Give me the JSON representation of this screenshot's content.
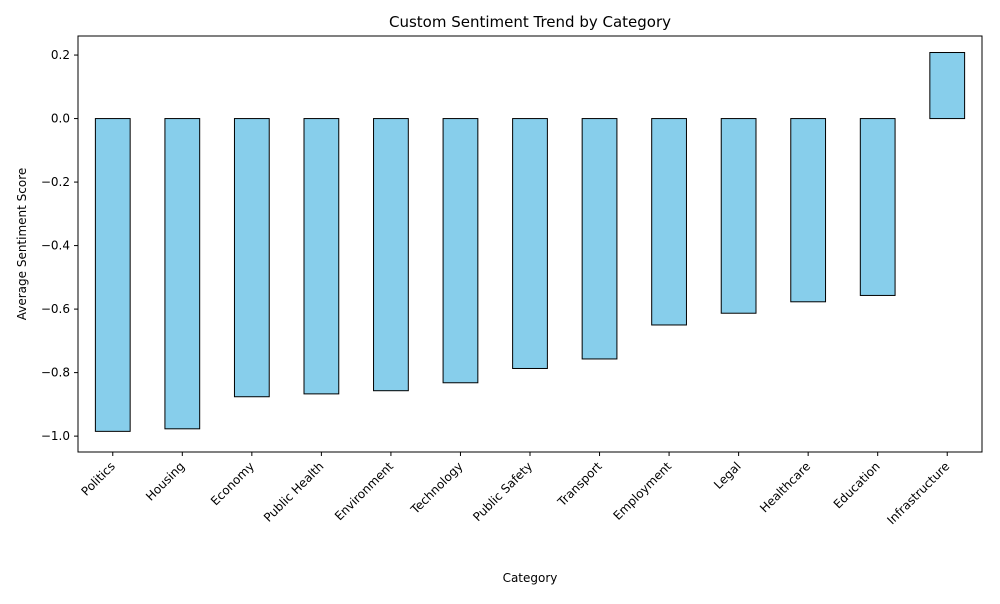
{
  "chart_data": {
    "type": "bar",
    "title": "Custom Sentiment Trend by Category",
    "xlabel": "Category",
    "ylabel": "Average Sentiment Score",
    "categories": [
      "Politics",
      "Housing",
      "Economy",
      "Public Health",
      "Environment",
      "Technology",
      "Public Safety",
      "Transport",
      "Employment",
      "Legal",
      "Healthcare",
      "Education",
      "Infrastructure"
    ],
    "values": [
      -0.985,
      -0.977,
      -0.876,
      -0.867,
      -0.857,
      -0.832,
      -0.787,
      -0.757,
      -0.65,
      -0.613,
      -0.577,
      -0.557,
      0.208
    ],
    "ylim": [
      -1.05,
      0.26
    ],
    "yticks": [
      -1.0,
      -0.8,
      -0.6,
      -0.4,
      -0.2,
      0.0,
      0.2
    ],
    "ytick_labels": [
      "−1.0",
      "−0.8",
      "−0.6",
      "−0.4",
      "−0.2",
      "0.0",
      "0.2"
    ],
    "grid": false,
    "legend": "none",
    "colors": {
      "bar_fill": "#87ceeb",
      "bar_edge": "#000000",
      "axis": "#000000"
    }
  }
}
